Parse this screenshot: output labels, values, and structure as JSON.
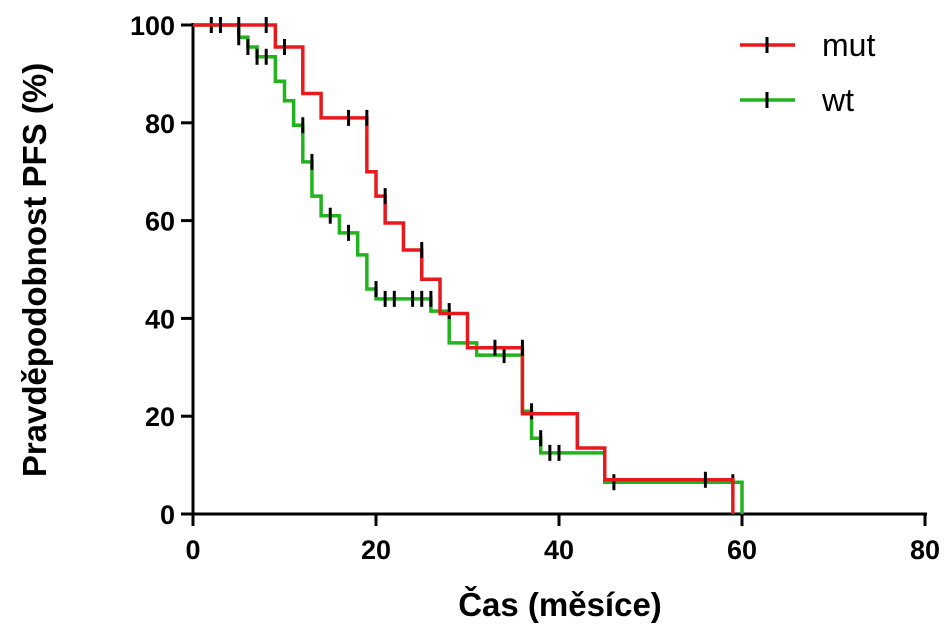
{
  "chart_data": {
    "type": "line",
    "subtype": "kaplan-meier-step",
    "title": "",
    "xlabel": "Čas (měsíce)",
    "ylabel": "Pravděpodobnost PFS (%)",
    "xlim": [
      0,
      80
    ],
    "ylim": [
      0,
      100
    ],
    "x_ticks": [
      "0",
      "20",
      "40",
      "60",
      "80"
    ],
    "y_ticks": [
      "0",
      "20",
      "40",
      "60",
      "80",
      "100"
    ],
    "grid": false,
    "legend_position": "top-right",
    "series": [
      {
        "name": "mut",
        "color": "#e8191c",
        "steps": [
          [
            0,
            100
          ],
          [
            9,
            95.5
          ],
          [
            12,
            86
          ],
          [
            14,
            81
          ],
          [
            19,
            70
          ],
          [
            20,
            65
          ],
          [
            21,
            59.5
          ],
          [
            23,
            54
          ],
          [
            25,
            48
          ],
          [
            27,
            41
          ],
          [
            30,
            34
          ],
          [
            36,
            20.5
          ],
          [
            42,
            13.5
          ],
          [
            45,
            7
          ],
          [
            59,
            0
          ]
        ],
        "end_x": 59,
        "censored": [
          [
            3,
            100
          ],
          [
            5,
            100
          ],
          [
            8,
            100
          ],
          [
            10,
            95.5
          ],
          [
            17,
            81
          ],
          [
            19,
            81
          ],
          [
            21,
            65
          ],
          [
            25,
            54
          ],
          [
            33,
            34
          ],
          [
            36,
            34
          ],
          [
            56,
            7
          ]
        ]
      },
      {
        "name": "wt",
        "color": "#22b41e",
        "steps": [
          [
            0,
            100
          ],
          [
            5,
            97.5
          ],
          [
            6,
            95.5
          ],
          [
            7,
            93.5
          ],
          [
            9,
            88.5
          ],
          [
            10,
            84.5
          ],
          [
            11,
            79.5
          ],
          [
            12,
            72
          ],
          [
            13,
            65
          ],
          [
            14,
            61
          ],
          [
            16,
            57.5
          ],
          [
            18,
            53
          ],
          [
            19,
            46
          ],
          [
            20,
            44
          ],
          [
            26,
            41.5
          ],
          [
            28,
            35
          ],
          [
            31,
            32.5
          ],
          [
            36,
            21
          ],
          [
            37,
            15.5
          ],
          [
            38,
            12.5
          ],
          [
            45,
            6.5
          ],
          [
            60,
            0
          ]
        ],
        "end_x": 60,
        "censored": [
          [
            2,
            100
          ],
          [
            5,
            97.5
          ],
          [
            6,
            95.5
          ],
          [
            7,
            93.5
          ],
          [
            8,
            93.5
          ],
          [
            12,
            79.5
          ],
          [
            13,
            72
          ],
          [
            15,
            61
          ],
          [
            17,
            57.5
          ],
          [
            20,
            46
          ],
          [
            21,
            44
          ],
          [
            22,
            44
          ],
          [
            24,
            44
          ],
          [
            25,
            44
          ],
          [
            26,
            44
          ],
          [
            28,
            41.5
          ],
          [
            34,
            32.5
          ],
          [
            37,
            21
          ],
          [
            38,
            15.5
          ],
          [
            39,
            12.5
          ],
          [
            40,
            12.5
          ],
          [
            46,
            6.5
          ],
          [
            59,
            6.5
          ]
        ]
      }
    ]
  }
}
